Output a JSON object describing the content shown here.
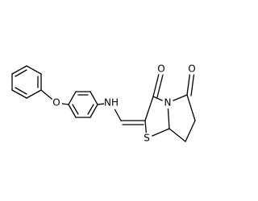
{
  "atoms": {
    "ether_o": "O",
    "amine": "NH",
    "carbonyl_o1": "O",
    "ring_n": "N",
    "ring_s": "S",
    "carbonyl_o2": "O"
  }
}
